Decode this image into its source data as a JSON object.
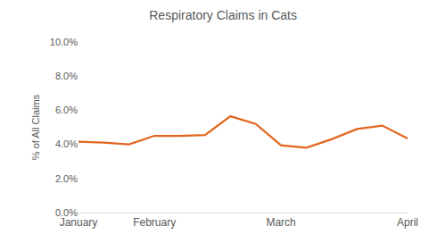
{
  "chart_data": {
    "type": "line",
    "title": "Respiratory Claims in Cats",
    "y_label": "% of All Claims",
    "categories": [
      "January",
      null,
      null,
      "February",
      null,
      null,
      null,
      null,
      "March",
      null,
      null,
      null,
      null,
      "April"
    ],
    "values": [
      4.15,
      4.1,
      4.0,
      4.5,
      4.5,
      4.55,
      5.65,
      5.2,
      3.95,
      3.8,
      4.3,
      4.9,
      5.1,
      4.35
    ],
    "color": "#e2661f",
    "ylim": [
      0,
      10
    ],
    "yticks": [
      {
        "value": 0,
        "label": "0.0%"
      },
      {
        "value": 2,
        "label": "2.0%"
      },
      {
        "value": 4,
        "label": "4.0%"
      },
      {
        "value": 6,
        "label": "6.0%"
      },
      {
        "value": 8,
        "label": "8.0%"
      },
      {
        "value": 10,
        "label": "10.0%"
      }
    ],
    "grid": false
  }
}
